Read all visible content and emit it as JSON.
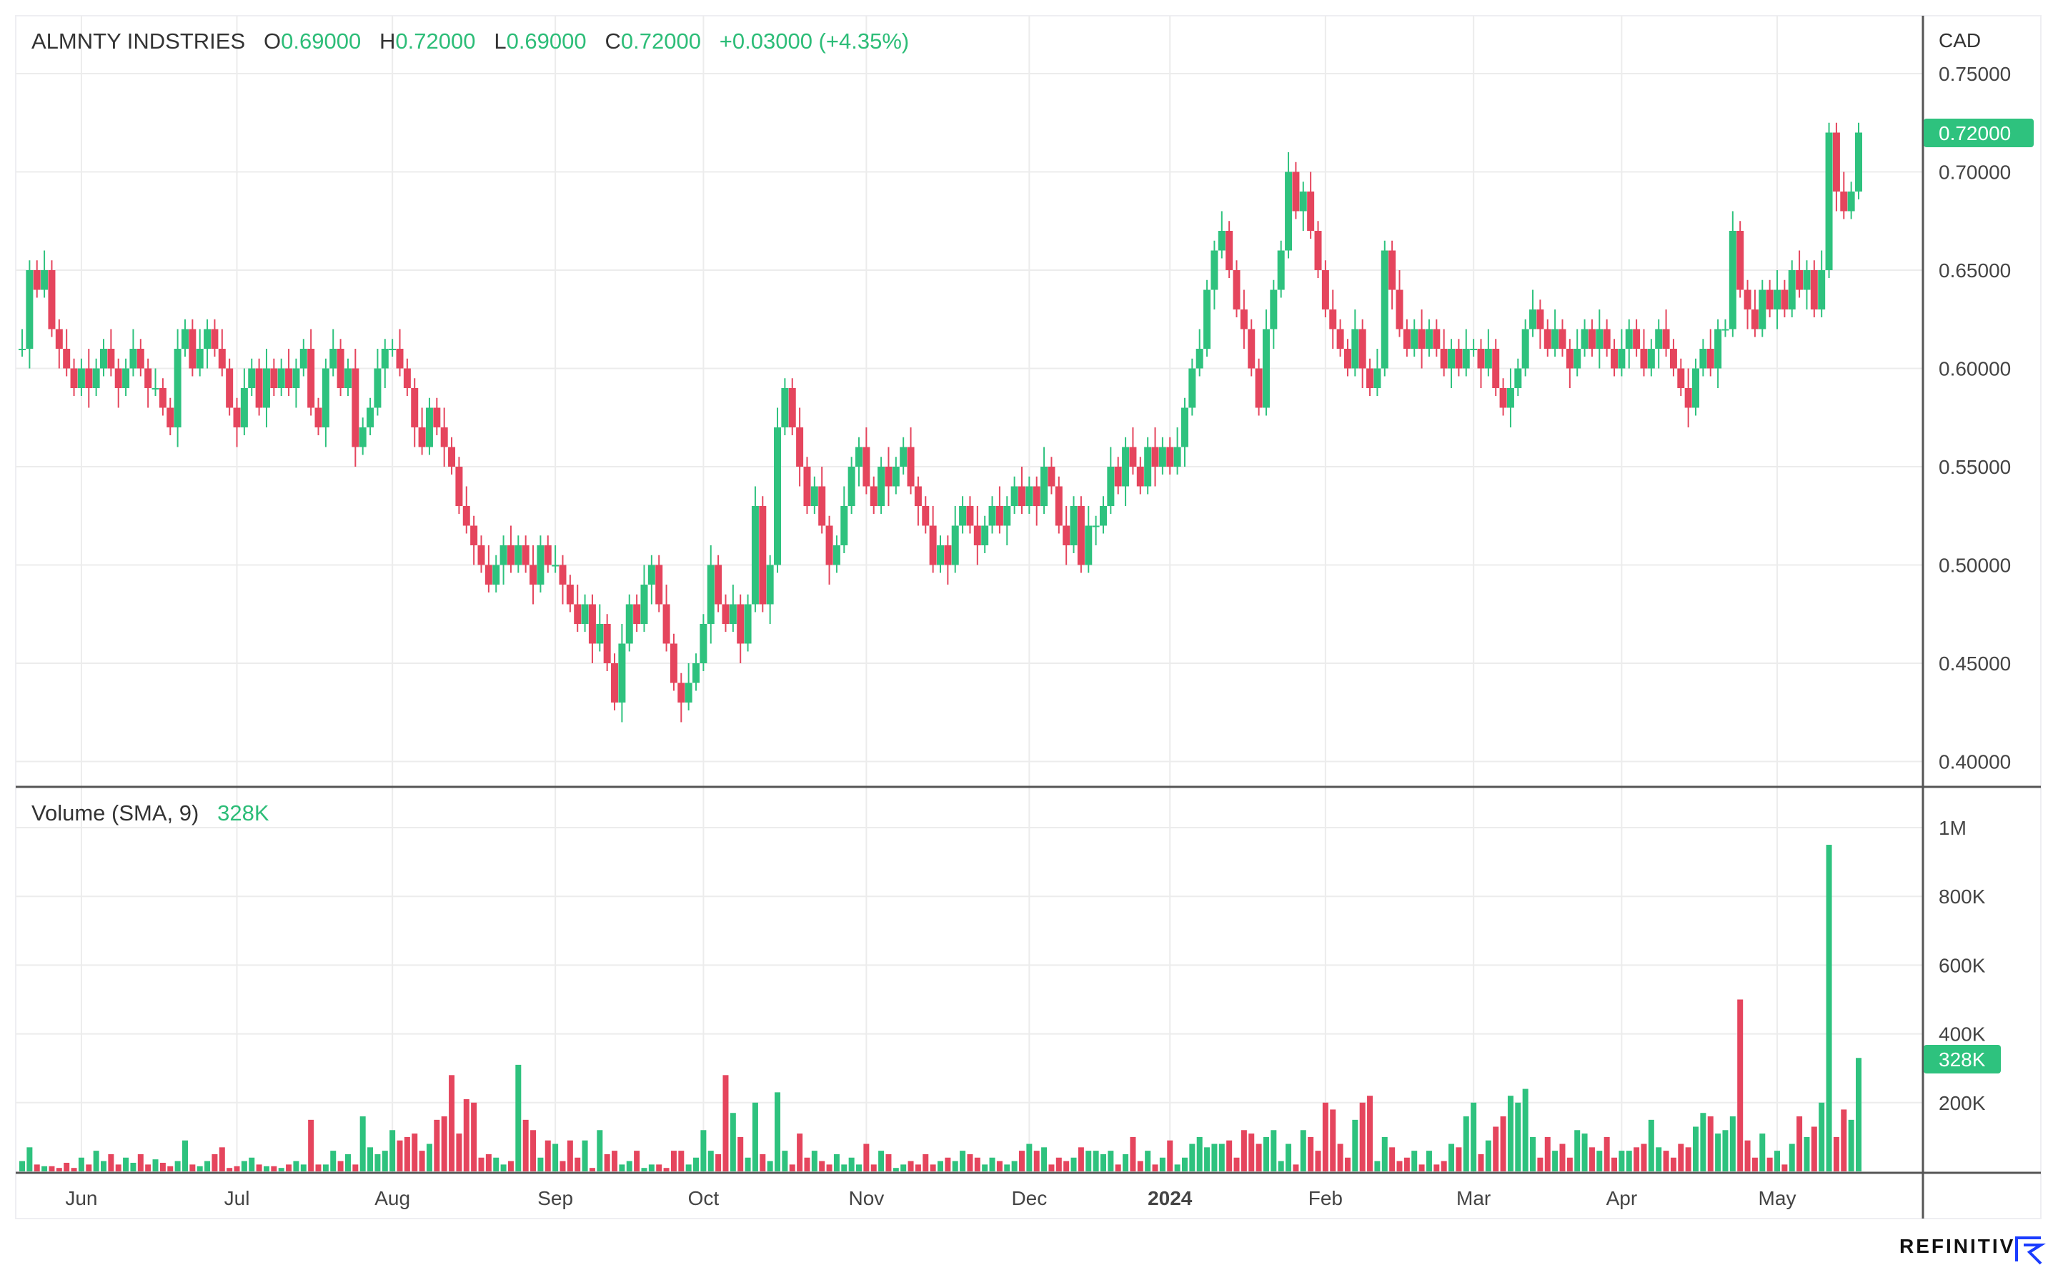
{
  "header": {
    "name": "ALMNTY INDSTRIES",
    "o_label": "O",
    "o": "0.69000",
    "h_label": "H",
    "h": "0.72000",
    "l_label": "L",
    "l": "0.69000",
    "c_label": "C",
    "c": "0.72000",
    "change": "+0.03000 (+4.35%)"
  },
  "volume_header": {
    "label": "Volume (SMA, 9)",
    "value": "328K"
  },
  "currency": "CAD",
  "last_price_badge": "0.72000",
  "last_volume_badge": "328K",
  "brand": "REFINITIV",
  "colors": {
    "up": "#2ec27e",
    "down": "#e5455d",
    "grid": "#ececec",
    "axis": "#555555"
  },
  "chart_data": {
    "type": "candlestick",
    "title": "ALMNTY INDSTRIES",
    "price_axis": {
      "ticks": [
        "0.75000",
        "0.70000",
        "0.65000",
        "0.60000",
        "0.55000",
        "0.50000",
        "0.45000",
        "0.40000"
      ],
      "values": [
        0.75,
        0.7,
        0.65,
        0.6,
        0.55,
        0.5,
        0.45,
        0.4
      ],
      "ylim": [
        0.387,
        0.765
      ]
    },
    "volume_axis": {
      "ticks": [
        "1M",
        "800K",
        "600K",
        "400K",
        "200K"
      ],
      "values": [
        1000,
        800,
        600,
        400,
        200
      ],
      "unit": "K"
    },
    "x_axis": {
      "labels": [
        "Jun",
        "Jul",
        "Aug",
        "Sep",
        "Oct",
        "Nov",
        "Dec",
        "2024",
        "Feb",
        "Mar",
        "Apr",
        "May"
      ],
      "label_index": [
        8,
        29,
        50,
        72,
        92,
        114,
        136,
        155,
        176,
        196,
        216,
        237
      ]
    },
    "first_open": 0.61,
    "close": [
      0.61,
      0.65,
      0.64,
      0.65,
      0.62,
      0.61,
      0.6,
      0.59,
      0.6,
      0.59,
      0.6,
      0.61,
      0.6,
      0.59,
      0.6,
      0.61,
      0.6,
      0.59,
      0.59,
      0.58,
      0.57,
      0.61,
      0.62,
      0.6,
      0.61,
      0.62,
      0.61,
      0.6,
      0.58,
      0.57,
      0.59,
      0.6,
      0.58,
      0.6,
      0.59,
      0.6,
      0.59,
      0.6,
      0.61,
      0.58,
      0.57,
      0.6,
      0.61,
      0.59,
      0.6,
      0.56,
      0.57,
      0.58,
      0.6,
      0.61,
      0.61,
      0.6,
      0.59,
      0.57,
      0.56,
      0.58,
      0.57,
      0.56,
      0.55,
      0.53,
      0.52,
      0.51,
      0.5,
      0.49,
      0.5,
      0.51,
      0.5,
      0.51,
      0.5,
      0.49,
      0.51,
      0.5,
      0.5,
      0.49,
      0.48,
      0.47,
      0.48,
      0.46,
      0.47,
      0.45,
      0.43,
      0.46,
      0.48,
      0.47,
      0.49,
      0.5,
      0.48,
      0.46,
      0.44,
      0.43,
      0.44,
      0.45,
      0.47,
      0.5,
      0.48,
      0.47,
      0.48,
      0.46,
      0.48,
      0.53,
      0.48,
      0.5,
      0.57,
      0.59,
      0.57,
      0.55,
      0.53,
      0.54,
      0.52,
      0.5,
      0.51,
      0.53,
      0.55,
      0.56,
      0.54,
      0.53,
      0.55,
      0.54,
      0.55,
      0.56,
      0.54,
      0.53,
      0.52,
      0.5,
      0.51,
      0.5,
      0.52,
      0.53,
      0.52,
      0.51,
      0.52,
      0.53,
      0.52,
      0.53,
      0.54,
      0.53,
      0.54,
      0.53,
      0.55,
      0.54,
      0.52,
      0.51,
      0.53,
      0.5,
      0.52,
      0.52,
      0.53,
      0.55,
      0.54,
      0.56,
      0.55,
      0.54,
      0.56,
      0.55,
      0.56,
      0.55,
      0.56,
      0.58,
      0.6,
      0.61,
      0.64,
      0.66,
      0.67,
      0.65,
      0.63,
      0.62,
      0.6,
      0.58,
      0.62,
      0.64,
      0.66,
      0.7,
      0.68,
      0.69,
      0.67,
      0.65,
      0.63,
      0.62,
      0.61,
      0.6,
      0.62,
      0.6,
      0.59,
      0.6,
      0.66,
      0.64,
      0.62,
      0.61,
      0.62,
      0.61,
      0.62,
      0.61,
      0.6,
      0.61,
      0.6,
      0.61,
      0.61,
      0.6,
      0.61,
      0.59,
      0.58,
      0.59,
      0.6,
      0.62,
      0.63,
      0.62,
      0.61,
      0.62,
      0.61,
      0.6,
      0.61,
      0.62,
      0.61,
      0.62,
      0.61,
      0.6,
      0.61,
      0.62,
      0.61,
      0.6,
      0.61,
      0.62,
      0.61,
      0.6,
      0.59,
      0.58,
      0.6,
      0.61,
      0.6,
      0.62,
      0.62,
      0.67,
      0.64,
      0.63,
      0.62,
      0.64,
      0.63,
      0.64,
      0.63,
      0.65,
      0.64,
      0.65,
      0.63,
      0.65,
      0.72,
      0.69,
      0.68,
      0.69,
      0.72
    ],
    "volume_k": [
      30,
      70,
      20,
      15,
      15,
      10,
      25,
      10,
      40,
      20,
      60,
      30,
      50,
      20,
      40,
      25,
      50,
      20,
      35,
      25,
      15,
      30,
      90,
      20,
      15,
      30,
      50,
      70,
      10,
      15,
      30,
      40,
      20,
      15,
      15,
      10,
      20,
      30,
      20,
      150,
      20,
      20,
      60,
      30,
      50,
      20,
      160,
      70,
      50,
      60,
      120,
      90,
      100,
      110,
      60,
      80,
      150,
      160,
      280,
      110,
      210,
      200,
      40,
      50,
      40,
      20,
      30,
      310,
      150,
      120,
      40,
      90,
      80,
      30,
      90,
      40,
      90,
      10,
      120,
      50,
      60,
      20,
      30,
      60,
      10,
      20,
      20,
      10,
      60,
      60,
      20,
      40,
      120,
      60,
      50,
      280,
      170,
      100,
      40,
      200,
      50,
      30,
      230,
      60,
      20,
      110,
      40,
      60,
      30,
      20,
      50,
      20,
      40,
      20,
      80,
      20,
      60,
      50,
      10,
      20,
      30,
      20,
      50,
      20,
      30,
      40,
      30,
      60,
      50,
      40,
      20,
      40,
      30,
      20,
      30,
      60,
      80,
      60,
      70,
      20,
      40,
      30,
      40,
      70,
      60,
      60,
      50,
      60,
      20,
      50,
      100,
      30,
      60,
      20,
      40,
      90,
      20,
      40,
      80,
      100,
      70,
      80,
      80,
      90,
      40,
      120,
      110,
      80,
      100,
      120,
      30,
      80,
      20,
      120,
      100,
      60,
      200,
      180,
      80,
      40,
      150,
      200,
      220,
      30,
      100,
      70,
      30,
      40,
      60,
      20,
      60,
      20,
      30,
      80,
      70,
      160,
      200,
      50,
      90,
      130,
      160,
      220,
      200,
      240,
      100,
      40,
      100,
      60,
      80,
      40,
      120,
      110,
      70,
      60,
      100,
      40,
      60,
      60,
      70,
      80,
      150,
      70,
      60,
      40,
      80,
      70,
      130,
      170,
      160,
      110,
      120,
      160,
      500,
      90,
      40,
      110,
      40,
      60,
      20,
      80,
      160,
      100,
      130,
      200,
      950,
      100,
      180,
      150,
      330
    ]
  }
}
